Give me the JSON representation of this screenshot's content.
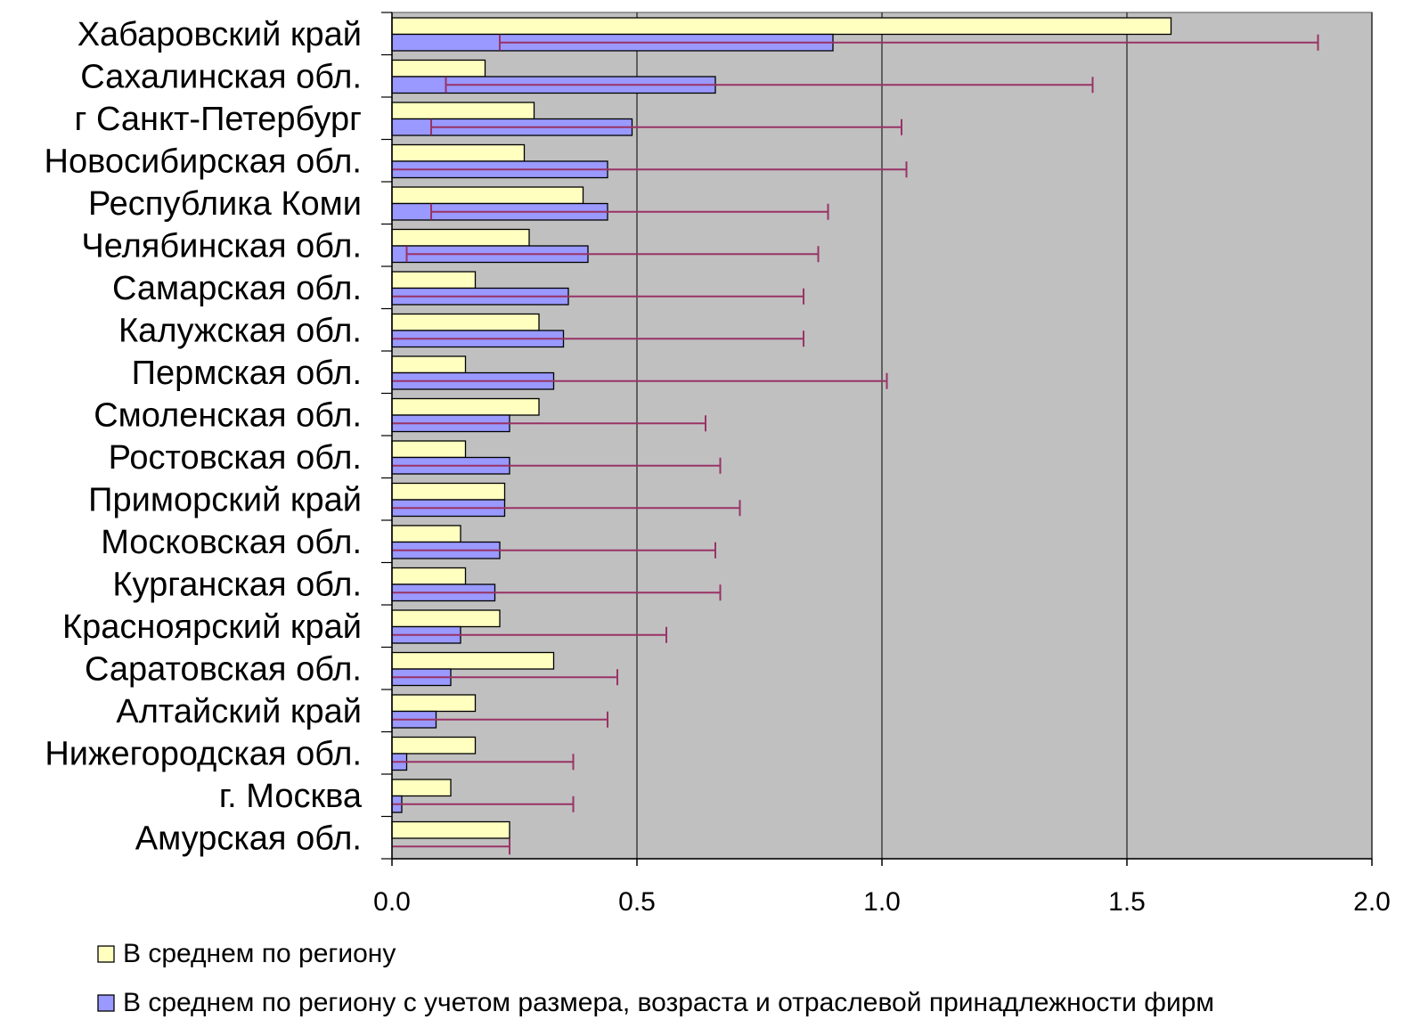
{
  "chart_data": {
    "type": "bar",
    "orientation": "horizontal",
    "title": "",
    "xlabel": "",
    "ylabel": "",
    "xlim": [
      0,
      2.0
    ],
    "xticks": [
      "0.0",
      "0.5",
      "1.0",
      "1.5",
      "2.0"
    ],
    "grid": "vertical",
    "plot_background": "#c0c0c0",
    "legend_position": "bottom",
    "categories": [
      "Хабаровский край",
      "Сахалинская обл.",
      "г Санкт-Петербург",
      "Новосибирская обл.",
      "Республика Коми",
      "Челябинская обл.",
      "Самарская обл.",
      "Калужская обл.",
      "Пермская обл.",
      "Смоленская обл.",
      "Ростовская обл.",
      "Приморский край",
      "Московская обл.",
      "Курганская обл.",
      "Красноярский край",
      "Саратовская обл.",
      "Алтайский край",
      "Нижегородская обл.",
      "г. Москва",
      "Амурская обл."
    ],
    "series": [
      {
        "name": "В среднем по региону",
        "color": "#ffffc0",
        "values": [
          1.59,
          0.19,
          0.29,
          0.27,
          0.39,
          0.28,
          0.17,
          0.3,
          0.15,
          0.3,
          0.15,
          0.23,
          0.14,
          0.15,
          0.22,
          0.33,
          0.17,
          0.17,
          0.12,
          0.24
        ]
      },
      {
        "name": "В среднем по региону с учетом размера, возраста и отраслевой принадлежности фирм",
        "color": "#9999ff",
        "values": [
          0.9,
          0.66,
          0.49,
          0.44,
          0.44,
          0.4,
          0.36,
          0.35,
          0.33,
          0.24,
          0.24,
          0.23,
          0.22,
          0.21,
          0.14,
          0.12,
          0.09,
          0.03,
          0.02,
          0.0
        ],
        "error_bars": {
          "color": "#993366",
          "low": [
            0.22,
            0.11,
            0.08,
            0.0,
            0.08,
            0.03,
            0.0,
            0.0,
            0.0,
            0.0,
            0.0,
            0.0,
            0.0,
            0.0,
            0.0,
            0.0,
            0.0,
            0.0,
            0.0,
            0.0
          ],
          "high": [
            1.89,
            1.43,
            1.04,
            1.05,
            0.89,
            0.87,
            0.84,
            0.84,
            1.01,
            0.64,
            0.67,
            0.71,
            0.66,
            0.67,
            0.56,
            0.46,
            0.44,
            0.37,
            0.37,
            0.24
          ]
        }
      }
    ]
  }
}
